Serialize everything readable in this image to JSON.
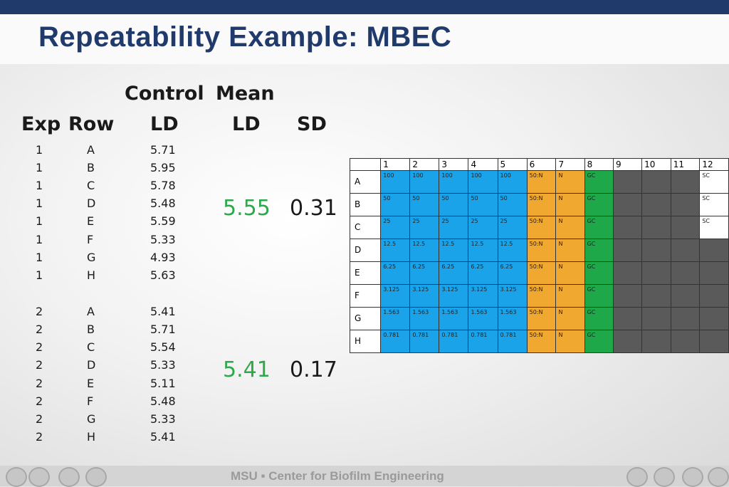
{
  "title": "Repeatability Example: MBEC",
  "headers": {
    "control_top": "Control",
    "mean_top": "Mean",
    "exp": "Exp",
    "row": "Row",
    "control_ld": "LD",
    "mean_ld": "LD",
    "sd": "SD"
  },
  "rows": [
    {
      "exp": "1",
      "row": "A",
      "ld": "5.71"
    },
    {
      "exp": "1",
      "row": "B",
      "ld": "5.95"
    },
    {
      "exp": "1",
      "row": "C",
      "ld": "5.78"
    },
    {
      "exp": "1",
      "row": "D",
      "ld": "5.48"
    },
    {
      "exp": "1",
      "row": "E",
      "ld": "5.59"
    },
    {
      "exp": "1",
      "row": "F",
      "ld": "5.33"
    },
    {
      "exp": "1",
      "row": "G",
      "ld": "4.93"
    },
    {
      "exp": "1",
      "row": "H",
      "ld": "5.63"
    },
    {
      "exp": "2",
      "row": "A",
      "ld": "5.41"
    },
    {
      "exp": "2",
      "row": "B",
      "ld": "5.71"
    },
    {
      "exp": "2",
      "row": "C",
      "ld": "5.54"
    },
    {
      "exp": "2",
      "row": "D",
      "ld": "5.33"
    },
    {
      "exp": "2",
      "row": "E",
      "ld": "5.11"
    },
    {
      "exp": "2",
      "row": "F",
      "ld": "5.48"
    },
    {
      "exp": "2",
      "row": "G",
      "ld": "5.33"
    },
    {
      "exp": "2",
      "row": "H",
      "ld": "5.41"
    }
  ],
  "summary": {
    "exp1": {
      "mean": "5.55",
      "sd": "0.31"
    },
    "exp2": {
      "mean": "5.41",
      "sd": "0.17"
    }
  },
  "plate": {
    "columns": [
      "1",
      "2",
      "3",
      "4",
      "5",
      "6",
      "7",
      "8",
      "9",
      "10",
      "11",
      "12"
    ],
    "row_labels": [
      "A",
      "B",
      "C",
      "D",
      "E",
      "F",
      "G",
      "H"
    ],
    "well_labels": [
      [
        "100",
        "100",
        "100",
        "100",
        "100",
        "50:N",
        "N",
        "GC",
        "",
        "",
        "",
        "SC"
      ],
      [
        "50",
        "50",
        "50",
        "50",
        "50",
        "50:N",
        "N",
        "GC",
        "",
        "",
        "",
        "SC"
      ],
      [
        "25",
        "25",
        "25",
        "25",
        "25",
        "50:N",
        "N",
        "GC",
        "",
        "",
        "",
        "SC"
      ],
      [
        "12.5",
        "12.5",
        "12.5",
        "12.5",
        "12.5",
        "50:N",
        "N",
        "GC",
        "",
        "",
        "",
        ""
      ],
      [
        "6.25",
        "6.25",
        "6.25",
        "6.25",
        "6.25",
        "50:N",
        "N",
        "GC",
        "",
        "",
        "",
        ""
      ],
      [
        "3.125",
        "3.125",
        "3.125",
        "3.125",
        "3.125",
        "50:N",
        "N",
        "GC",
        "",
        "",
        "",
        ""
      ],
      [
        "1.563",
        "1.563",
        "1.563",
        "1.563",
        "1.563",
        "50:N",
        "N",
        "GC",
        "",
        "",
        "",
        ""
      ],
      [
        "0.781",
        "0.781",
        "0.781",
        "0.781",
        "0.781",
        "50:N",
        "N",
        "GC",
        "",
        "",
        "",
        ""
      ]
    ],
    "colors": {
      "dilution": "#1aa3e8",
      "neutralizer": "#f0a830",
      "growth_control": "#1fa84a",
      "empty": "#5a5a5a",
      "sterility_control": "#ffffff"
    }
  },
  "footer": {
    "text": "MSU ▪ Center for Biofilm Engineering"
  }
}
